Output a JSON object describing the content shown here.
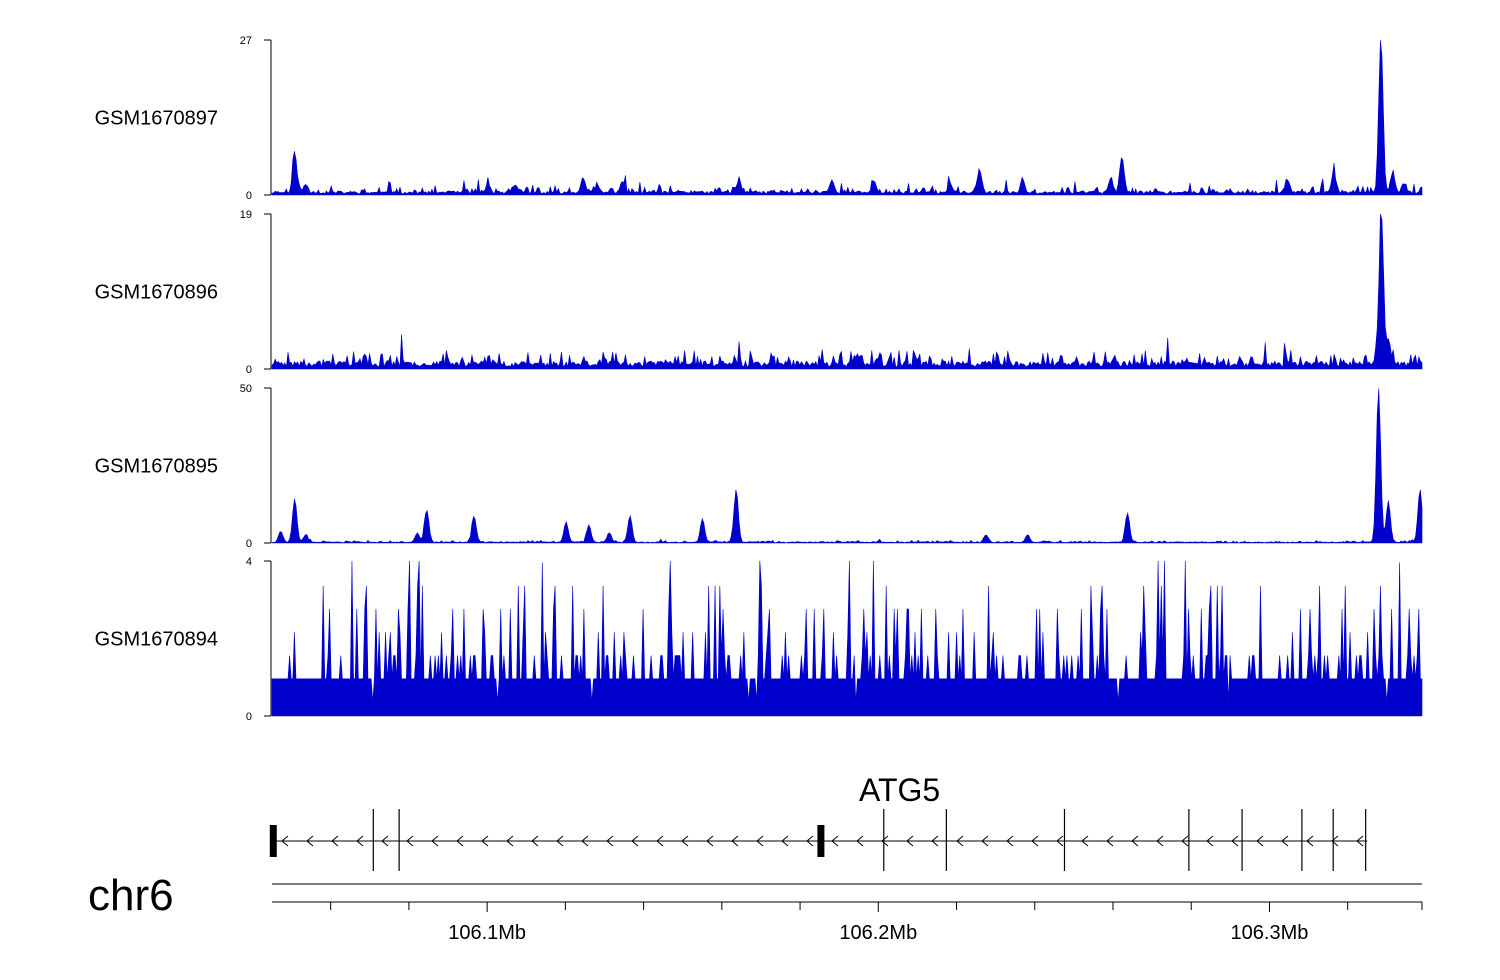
{
  "chart_data": {
    "type": "area",
    "title": "",
    "chromosome": "chr6",
    "region_mb": [
      106.045,
      106.339
    ],
    "colors": {
      "signal": "#0000cd",
      "axis": "#000000"
    },
    "tracks": [
      {
        "name": "GSM1670897",
        "ylim": [
          0,
          27
        ],
        "ymax_label": "27",
        "ymin_label": "0",
        "baseline": 0.5,
        "noise": 1.0,
        "seed": 11,
        "peaks": [
          [
            106.051,
            7
          ],
          [
            106.0538,
            1.5
          ],
          [
            106.1003,
            1.6
          ],
          [
            106.1073,
            1.4
          ],
          [
            106.1246,
            2.8
          ],
          [
            106.1282,
            1.2
          ],
          [
            106.1346,
            2.0
          ],
          [
            106.1644,
            2.2
          ],
          [
            106.1882,
            2.3
          ],
          [
            106.1989,
            2.0
          ],
          [
            106.2183,
            1.8
          ],
          [
            106.2258,
            4.2
          ],
          [
            106.2368,
            2.2
          ],
          [
            106.2622,
            6.4
          ],
          [
            106.2593,
            2.4
          ],
          [
            106.3044,
            2.4
          ],
          [
            106.3163,
            3.5
          ],
          [
            106.3283,
            27
          ],
          [
            106.3313,
            3.5
          ],
          [
            106.3341,
            1.6
          ]
        ]
      },
      {
        "name": "GSM1670896",
        "ylim": [
          0,
          19
        ],
        "ymax_label": "19",
        "ymin_label": "0",
        "baseline": 0.7,
        "noise": 1.6,
        "seed": 23,
        "peaks": [
          [
            106.3284,
            19
          ],
          [
            106.3302,
            3.0
          ]
        ]
      },
      {
        "name": "GSM1670895",
        "ylim": [
          0,
          50
        ],
        "ymax_label": "50",
        "ymin_label": "0",
        "baseline": 0.3,
        "noise": 0.5,
        "seed": 37,
        "peaks": [
          [
            106.0474,
            3.5
          ],
          [
            106.051,
            14
          ],
          [
            106.0538,
            2.5
          ],
          [
            106.0847,
            10.5
          ],
          [
            106.0823,
            3.0
          ],
          [
            106.0968,
            8.5
          ],
          [
            106.1203,
            6.5
          ],
          [
            106.1261,
            5.5
          ],
          [
            106.1313,
            3.2
          ],
          [
            106.1366,
            8.5
          ],
          [
            106.1551,
            7.5
          ],
          [
            106.1637,
            17
          ],
          [
            106.2636,
            9.5
          ],
          [
            106.2275,
            2.5
          ],
          [
            106.2381,
            2.5
          ],
          [
            106.3277,
            50
          ],
          [
            106.3302,
            13
          ],
          [
            106.3383,
            17
          ]
        ]
      },
      {
        "name": "GSM1670894",
        "ylim": [
          0,
          4
        ],
        "ymax_label": "4",
        "ymin_label": "0",
        "baseline": 0.7,
        "noise": 2.6,
        "seed": 53,
        "quantize": 0.6,
        "peaks": []
      }
    ],
    "gene": {
      "name": "ATG5",
      "strand": "-",
      "start_mb": 106.045,
      "end_mb": 106.325,
      "exons_mb": [
        106.0452,
        106.0709,
        106.0775,
        106.1852,
        106.2014,
        106.2174,
        106.2476,
        106.2794,
        106.293,
        106.3083,
        106.3163,
        106.3246
      ],
      "thick_exons_mb": [
        106.0452,
        106.1852
      ]
    },
    "x_axis": {
      "major_ticks_mb": [
        106.1,
        106.2,
        106.3
      ],
      "major_labels": [
        "106.1Mb",
        "106.2Mb",
        "106.3Mb"
      ],
      "minor_ticks_mb": [
        106.06,
        106.08,
        106.12,
        106.14,
        106.16,
        106.18,
        106.22,
        106.24,
        106.26,
        106.28,
        106.32,
        106.339
      ]
    }
  }
}
